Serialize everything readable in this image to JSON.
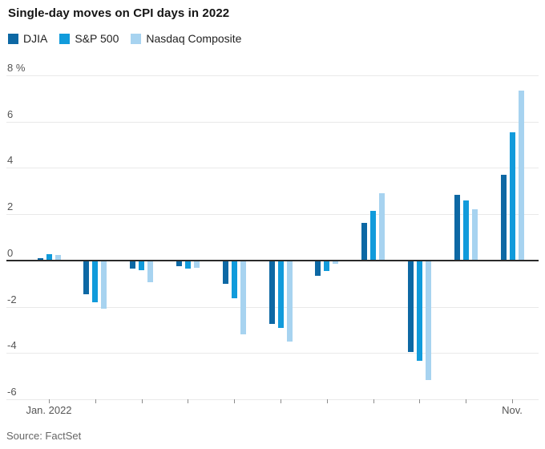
{
  "title": "Single-day moves on CPI days in 2022",
  "source": "Source: FactSet",
  "legend": [
    {
      "label": "DJIA",
      "color": "#0d68a4"
    },
    {
      "label": "S&P 500",
      "color": "#119bdb"
    },
    {
      "label": "Nasdaq Composite",
      "color": "#a7d3f0"
    }
  ],
  "chart_data": {
    "type": "bar",
    "title": "Single-day moves on CPI days in 2022",
    "categories": [
      "Jan. 2022",
      "",
      "",
      "",
      "",
      "",
      "",
      "",
      "",
      "",
      "Nov."
    ],
    "series": [
      {
        "name": "DJIA",
        "color": "#0d68a4",
        "values": [
          0.11,
          -1.47,
          -0.34,
          -0.26,
          -1.02,
          -2.73,
          -0.67,
          1.63,
          -3.94,
          2.83,
          3.7
        ]
      },
      {
        "name": "S&P 500",
        "color": "#119bdb",
        "values": [
          0.28,
          -1.81,
          -0.43,
          -0.34,
          -1.65,
          -2.91,
          -0.45,
          2.13,
          -4.32,
          2.6,
          5.54
        ]
      },
      {
        "name": "Nasdaq Composite",
        "color": "#a7d3f0",
        "values": [
          0.23,
          -2.1,
          -0.95,
          -0.3,
          -3.18,
          -3.52,
          -0.15,
          2.89,
          -5.16,
          2.23,
          7.35
        ]
      }
    ],
    "unit": "%",
    "ylim": [
      -6,
      8
    ],
    "ytick_values": [
      8,
      6,
      4,
      2,
      0,
      -2,
      -4,
      -6
    ],
    "ytick_labels": [
      "8 %",
      "6",
      "4",
      "2",
      "0",
      "-2",
      "-4",
      "-6"
    ],
    "grid": true,
    "legend_position": "top",
    "xlabel": "",
    "ylabel": "",
    "source": "Source: FactSet"
  }
}
